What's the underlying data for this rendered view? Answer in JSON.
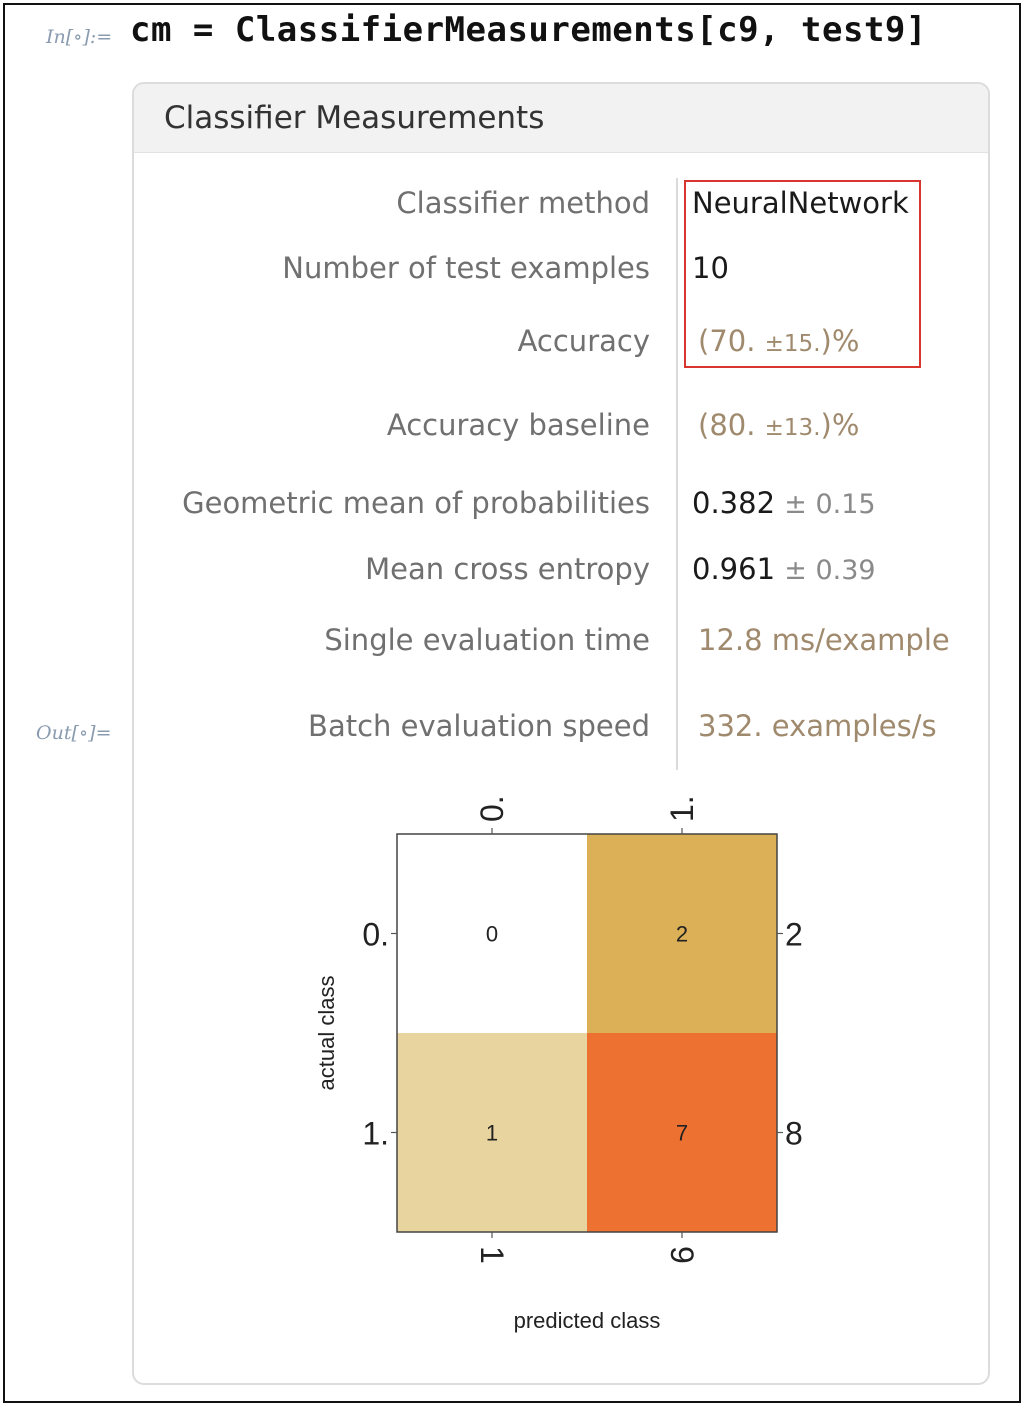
{
  "input": {
    "label": "In[∘]:=",
    "code": "cm = ClassifierMeasurements[c9, test9]"
  },
  "output": {
    "label": "Out[∘]="
  },
  "panel": {
    "title": "Classifier Measurements",
    "rows": [
      {
        "label": "Classifier method",
        "value": "NeuralNetwork"
      },
      {
        "label": "Number of test examples",
        "value": "10"
      },
      {
        "label": "Accuracy",
        "value_open": "(70. ",
        "value_pm": "±15.",
        "value_close": ")%"
      },
      {
        "label": "Accuracy baseline",
        "value_open": "(80. ",
        "value_pm": "±13.",
        "value_close": ")%"
      },
      {
        "label": "Geometric mean of probabilities",
        "value": "0.382",
        "uncertainty": "± 0.15"
      },
      {
        "label": "Mean cross entropy",
        "value": "0.961",
        "uncertainty": "± 0.39"
      },
      {
        "label": "Single evaluation time",
        "value": "12.8 ms/example"
      },
      {
        "label": "Batch evaluation speed",
        "value": "332. examples/s"
      }
    ]
  },
  "colors": {
    "highlight": "#d7352e",
    "tan_text": "#a08a6e",
    "cell_low": "#ffffff",
    "cell_mid_low": "#e8d49e",
    "cell_mid": "#dcb057",
    "cell_high": "#ed7130"
  },
  "chart_data": {
    "type": "heatmap",
    "title": "",
    "xlabel": "predicted class",
    "ylabel": "actual class",
    "x_top_labels": [
      "0.",
      "1."
    ],
    "x_bottom_labels": [
      "1",
      "9"
    ],
    "y_left_labels": [
      "0.",
      "1."
    ],
    "y_right_labels": [
      "2",
      "8"
    ],
    "matrix": [
      [
        0,
        2
      ],
      [
        1,
        7
      ]
    ]
  }
}
